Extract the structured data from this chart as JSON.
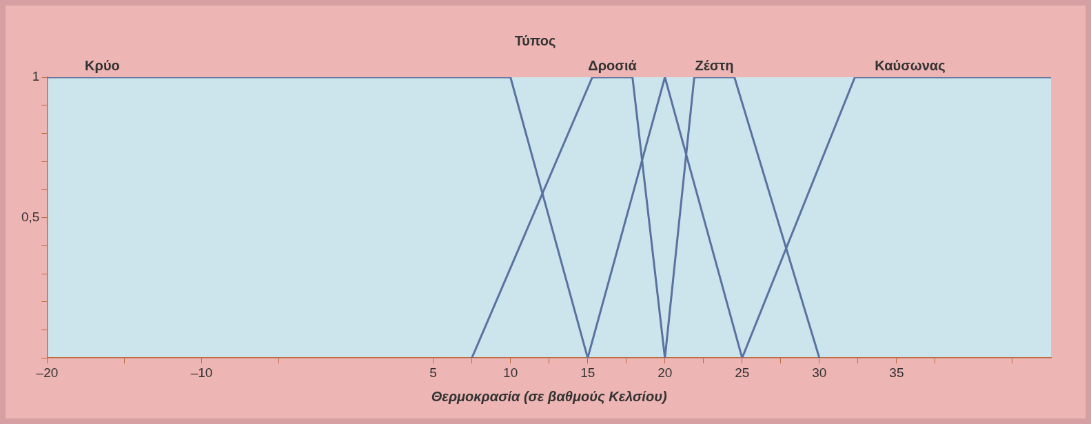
{
  "chart_data": {
    "type": "line",
    "title": "Τύπος",
    "xlabel": "Θερμοκρασία (σε βαθμούς Κελσίου)",
    "xlim": [
      -20,
      45
    ],
    "xticks": [
      {
        "value": -20,
        "label": "–20"
      },
      {
        "value": -15,
        "label": null
      },
      {
        "value": -10,
        "label": "–10"
      },
      {
        "value": -5,
        "label": null
      },
      5,
      {
        "value": 7.5,
        "label": null
      },
      10,
      {
        "value": 12.5,
        "label": null
      },
      15,
      {
        "value": 17.5,
        "label": null
      },
      20,
      {
        "value": 22.5,
        "label": null
      },
      25,
      {
        "value": 27.5,
        "label": null
      },
      30,
      {
        "value": 32.5,
        "label": null
      },
      35,
      {
        "value": 37.5,
        "label": null
      },
      {
        "value": 42.5,
        "label": null
      }
    ],
    "ylim": [
      0,
      1
    ],
    "yticks": [
      {
        "value": 0,
        "label": null
      },
      {
        "value": 0.1,
        "label": null
      },
      {
        "value": 0.2,
        "label": null
      },
      {
        "value": 0.3,
        "label": null
      },
      {
        "value": 0.4,
        "label": null
      },
      {
        "value": 0.5,
        "label": "0,5"
      },
      {
        "value": 0.6,
        "label": null
      },
      {
        "value": 0.7,
        "label": null
      },
      {
        "value": 0.8,
        "label": null
      },
      {
        "value": 0.9,
        "label": null
      },
      1
    ],
    "grid": false,
    "legend": false,
    "marker": "none",
    "line_style": "solid",
    "series": [
      {
        "name": "Κρύο",
        "color": "#5a72a0",
        "x": [
          -20,
          10,
          15
        ],
        "values": [
          1,
          1,
          0
        ]
      },
      {
        "name": "Δροσιά",
        "color": "#5a72a0",
        "x": [
          7.5,
          15.3,
          17.9,
          20
        ],
        "values": [
          0,
          1,
          1,
          0
        ]
      },
      {
        "color": "#5a72a0",
        "x": [
          15,
          20,
          25
        ],
        "values": [
          0,
          1,
          0
        ]
      },
      {
        "name": "Ζέστη",
        "color": "#5a72a0",
        "x": [
          20,
          21.9,
          24.5,
          30
        ],
        "values": [
          0,
          1,
          1,
          0
        ]
      },
      {
        "name": "Καύσωνας",
        "color": "#5a72a0",
        "x": [
          25,
          32.3,
          45
        ],
        "values": [
          0,
          1,
          1
        ]
      }
    ]
  }
}
